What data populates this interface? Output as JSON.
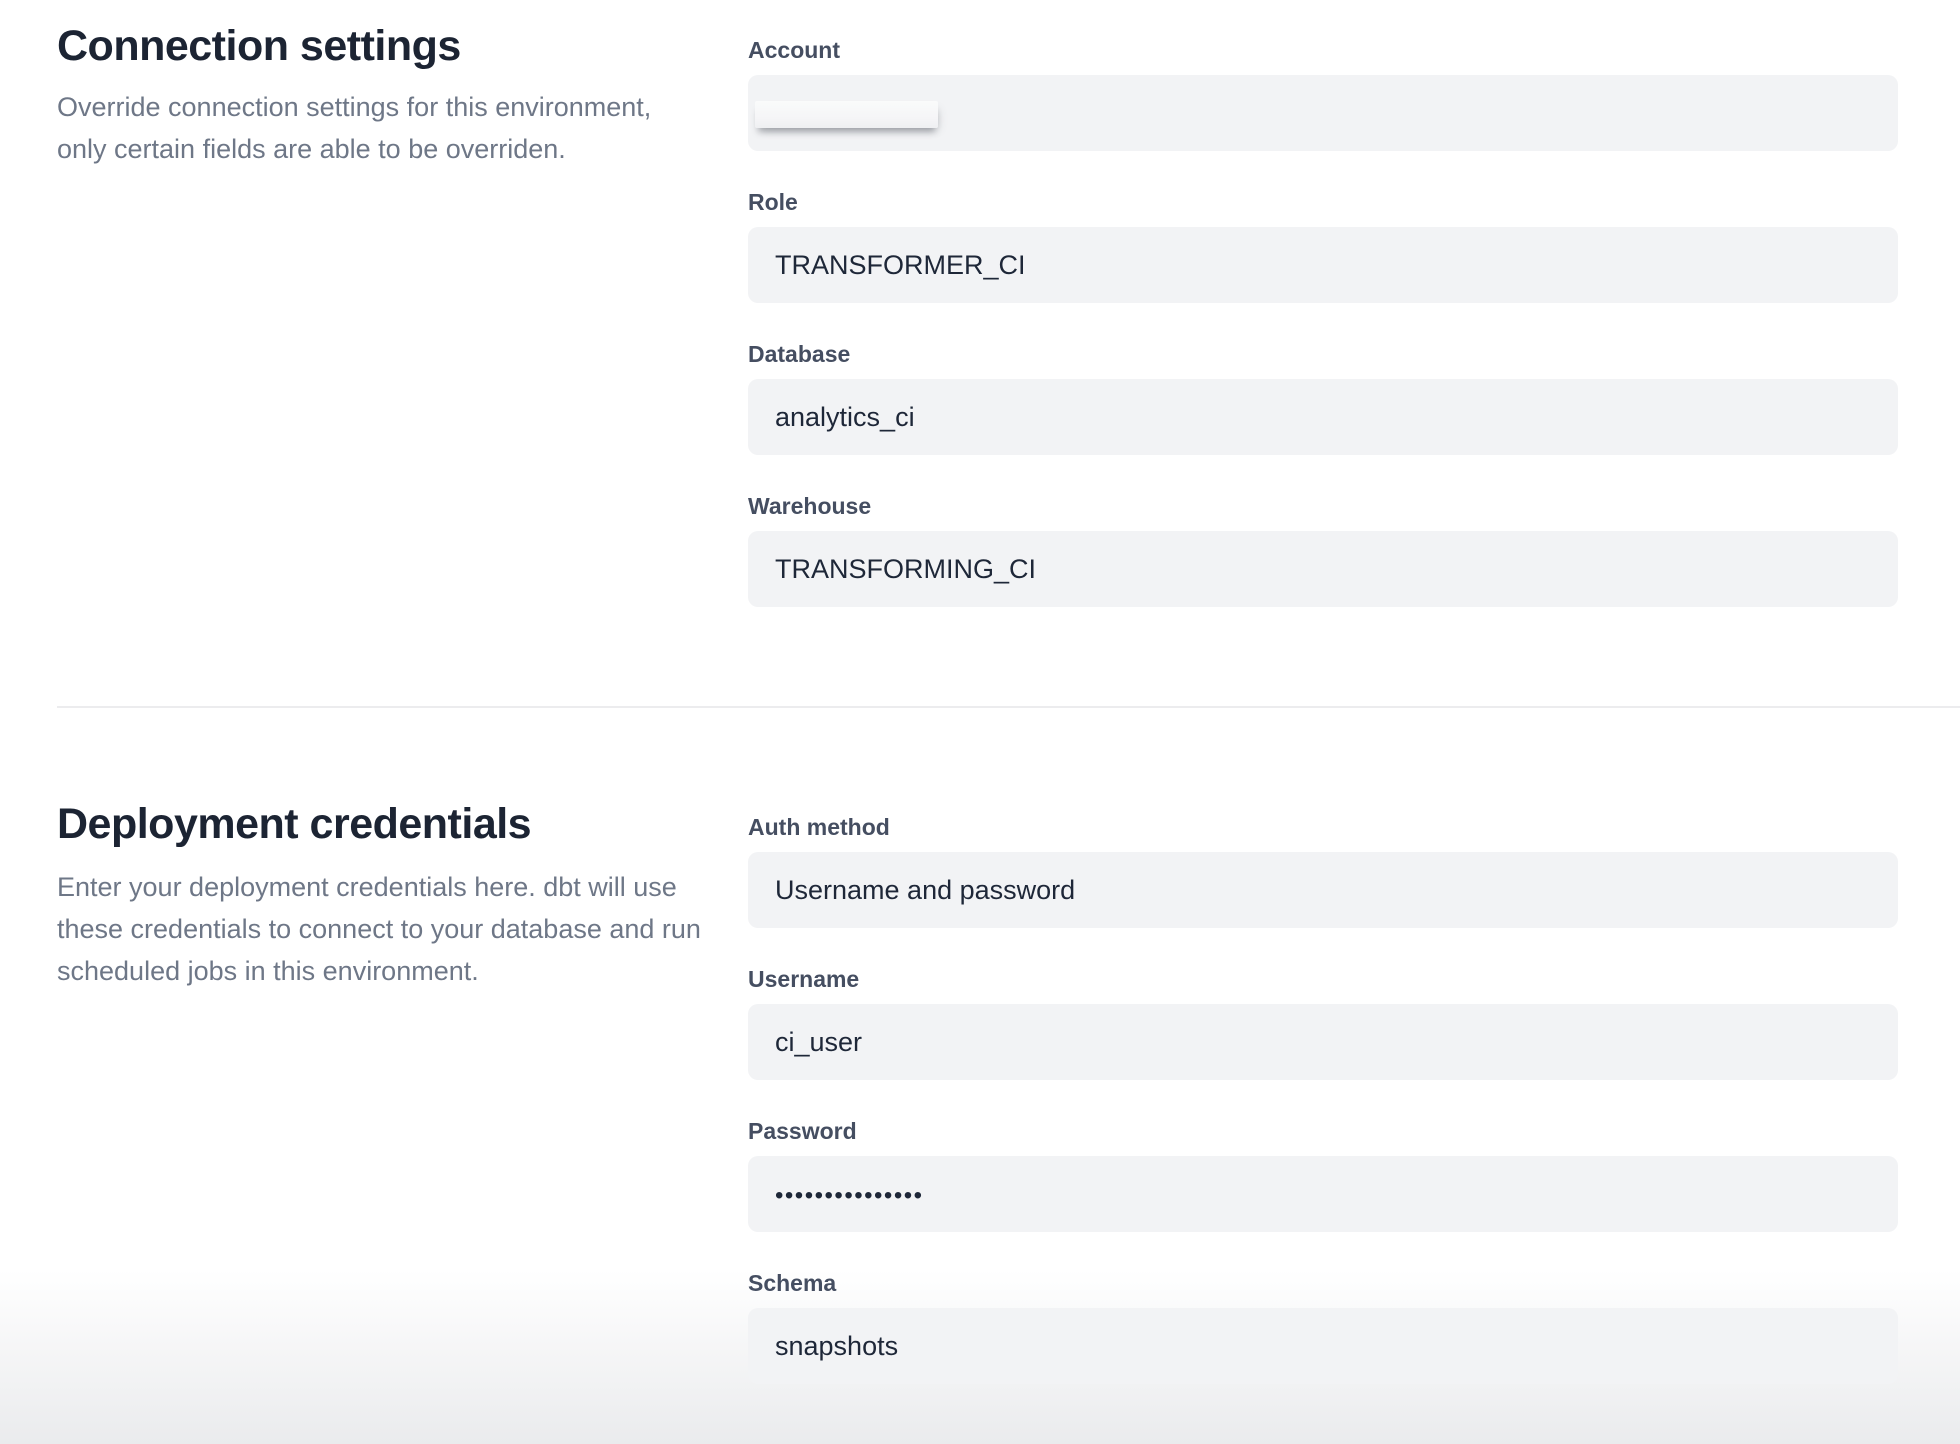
{
  "connection": {
    "title": "Connection settings",
    "description_lines": [
      "Override connection settings for this environment,",
      "only certain fields are able to be overriden."
    ],
    "fields": [
      {
        "label": "Account",
        "value": "",
        "redacted": true
      },
      {
        "label": "Role",
        "value": "TRANSFORMER_CI"
      },
      {
        "label": "Database",
        "value": "analytics_ci"
      },
      {
        "label": "Warehouse",
        "value": "TRANSFORMING_CI"
      }
    ]
  },
  "deployment": {
    "title": "Deployment credentials",
    "description_lines": [
      "Enter your deployment credentials here. dbt will use",
      "these credentials to connect to your database and run",
      "scheduled jobs in this environment."
    ],
    "fields": [
      {
        "label": "Auth method",
        "value": "Username and password"
      },
      {
        "label": "Username",
        "value": "ci_user"
      },
      {
        "label": "Password",
        "value": "•••••••••••••••",
        "masked": true
      },
      {
        "label": "Schema",
        "value": "snapshots"
      }
    ]
  },
  "colors": {
    "heading": "#1c2433",
    "label": "#454e61",
    "description_text": "#6e7787",
    "value_text": "#1e2738",
    "input_background": "#f2f3f5",
    "divider": "#ececee",
    "page_background": "#ffffff"
  }
}
